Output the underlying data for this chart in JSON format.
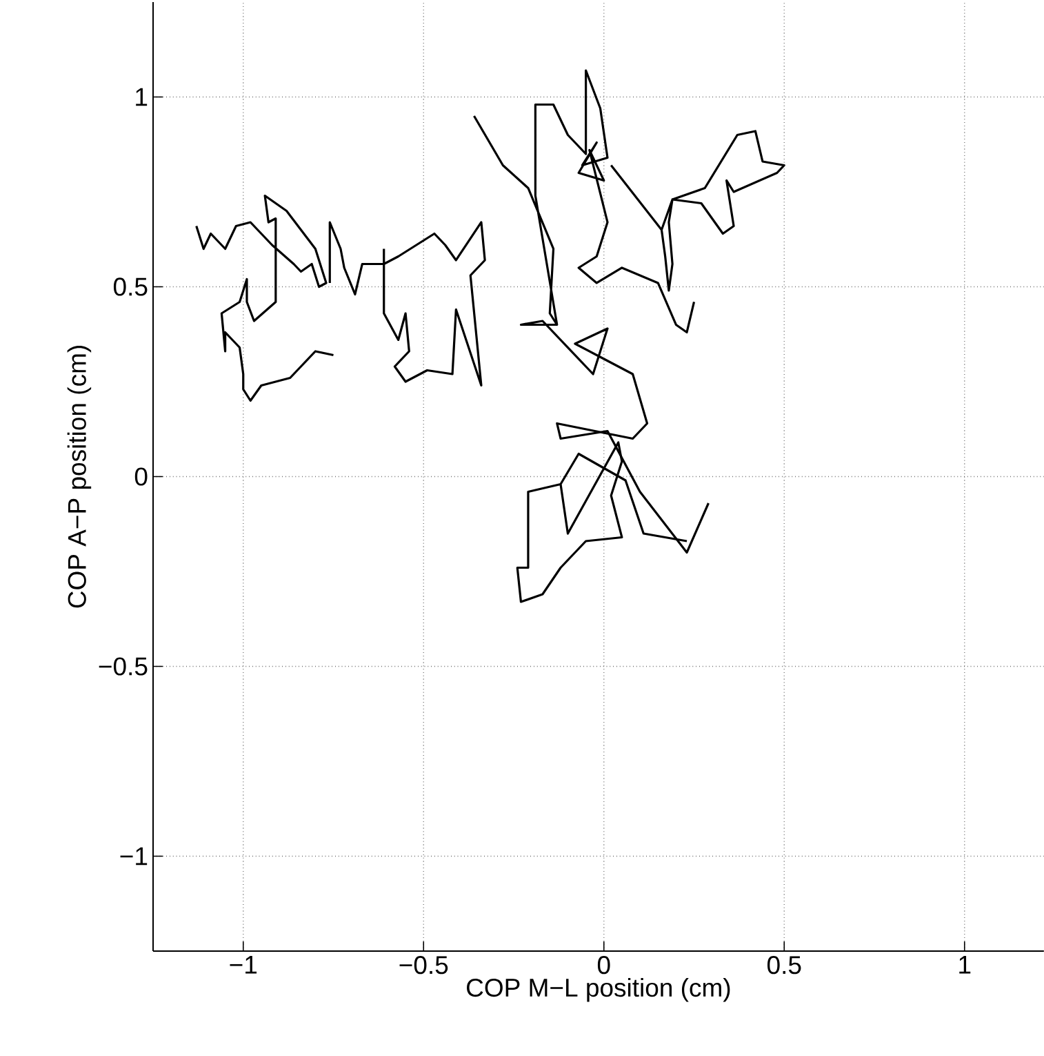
{
  "chart_data": {
    "type": "line",
    "xlabel": "COP M−L position (cm)",
    "ylabel": "COP A−P position (cm)",
    "xlim": [
      -1.25,
      1.22
    ],
    "ylim": [
      -1.25,
      1.25
    ],
    "xticks": [
      {
        "value": -1,
        "label": "−1"
      },
      {
        "value": -0.5,
        "label": "−0.5"
      },
      0,
      0.5,
      1
    ],
    "yticks": [
      {
        "value": -1,
        "label": "−1"
      },
      {
        "value": -0.5,
        "label": "−0.5"
      },
      0,
      0.5,
      1
    ],
    "grid": true,
    "marker": "none",
    "line_style": "solid",
    "series": [
      {
        "color": "#000000",
        "x": [
          -0.75,
          -0.8,
          -0.87,
          -0.95,
          -0.98,
          -1.0,
          -1.0,
          -1.01,
          -1.05,
          -1.05,
          -1.06,
          -1.01,
          -0.99,
          -0.99,
          -0.97,
          -0.91,
          -0.91,
          -0.93,
          -0.94,
          -0.88,
          -0.8,
          -0.77,
          -0.79,
          -0.81,
          -0.84,
          -0.86,
          -0.92,
          -0.98,
          -1.02,
          -1.05,
          -1.09,
          -1.11,
          -1.13
        ],
        "values": [
          0.32,
          0.33,
          0.26,
          0.24,
          0.2,
          0.23,
          0.27,
          0.34,
          0.38,
          0.33,
          0.43,
          0.46,
          0.52,
          0.46,
          0.41,
          0.46,
          0.68,
          0.67,
          0.74,
          0.7,
          0.6,
          0.51,
          0.5,
          0.56,
          0.54,
          0.56,
          0.61,
          0.67,
          0.66,
          0.6,
          0.64,
          0.6,
          0.66
        ]
      },
      {
        "color": "#000000",
        "x": [
          -0.76,
          -0.76,
          -0.73,
          -0.72,
          -0.69,
          -0.67,
          -0.61,
          -0.57,
          -0.47,
          -0.44,
          -0.41,
          -0.34,
          -0.33,
          -0.37,
          -0.34,
          -0.41,
          -0.42,
          -0.49,
          -0.55,
          -0.58,
          -0.54,
          -0.55,
          -0.57,
          -0.61,
          -0.61
        ],
        "values": [
          0.51,
          0.67,
          0.6,
          0.55,
          0.48,
          0.56,
          0.56,
          0.58,
          0.64,
          0.61,
          0.57,
          0.67,
          0.57,
          0.53,
          0.24,
          0.44,
          0.27,
          0.28,
          0.25,
          0.29,
          0.33,
          0.43,
          0.36,
          0.43,
          0.6
        ]
      },
      {
        "color": "#000000",
        "x": [
          -0.36,
          -0.28,
          -0.21,
          -0.14,
          -0.15,
          -0.13,
          -0.19,
          -0.19,
          -0.14,
          -0.1,
          -0.05,
          -0.05,
          -0.01,
          0.01,
          -0.06,
          -0.02,
          -0.07,
          0.0,
          -0.04,
          0.01,
          -0.02,
          -0.07,
          -0.02,
          0.05,
          0.15,
          0.2,
          0.23,
          0.25
        ],
        "values": [
          0.95,
          0.82,
          0.76,
          0.6,
          0.43,
          0.4,
          0.74,
          0.98,
          0.98,
          0.9,
          0.85,
          1.07,
          0.97,
          0.84,
          0.82,
          0.88,
          0.8,
          0.78,
          0.86,
          0.67,
          0.58,
          0.55,
          0.51,
          0.55,
          0.51,
          0.4,
          0.38,
          0.46
        ]
      },
      {
        "color": "#000000",
        "x": [
          0.02,
          0.16,
          0.19,
          0.28,
          0.37,
          0.42,
          0.44,
          0.5,
          0.48,
          0.36,
          0.34,
          0.36,
          0.33,
          0.27,
          0.19,
          0.18,
          0.19,
          0.18,
          0.17,
          0.16
        ],
        "values": [
          0.82,
          0.65,
          0.73,
          0.76,
          0.9,
          0.91,
          0.83,
          0.82,
          0.8,
          0.75,
          0.78,
          0.66,
          0.64,
          0.72,
          0.73,
          0.67,
          0.56,
          0.49,
          0.58,
          0.65
        ]
      },
      {
        "color": "#000000",
        "x": [
          -0.13,
          -0.23,
          -0.17,
          -0.03,
          0.01,
          -0.08,
          0.0,
          0.08,
          0.12,
          0.08,
          -0.13,
          -0.12,
          0.01,
          0.1,
          0.23,
          0.29
        ],
        "values": [
          0.4,
          0.4,
          0.41,
          0.27,
          0.39,
          0.35,
          0.31,
          0.27,
          0.14,
          0.1,
          0.14,
          0.1,
          0.12,
          -0.04,
          -0.2,
          -0.07
        ]
      },
      {
        "color": "#000000",
        "x": [
          0.23,
          0.11,
          0.06,
          -0.07,
          -0.12,
          -0.21,
          -0.21,
          -0.24,
          -0.23,
          -0.17,
          -0.12,
          -0.05,
          0.05,
          0.02,
          0.05,
          0.04,
          -0.1,
          -0.12
        ],
        "values": [
          -0.17,
          -0.15,
          -0.01,
          0.06,
          -0.02,
          -0.04,
          -0.24,
          -0.24,
          -0.33,
          -0.31,
          -0.24,
          -0.17,
          -0.16,
          -0.05,
          0.04,
          0.09,
          -0.15,
          -0.02
        ]
      }
    ]
  }
}
